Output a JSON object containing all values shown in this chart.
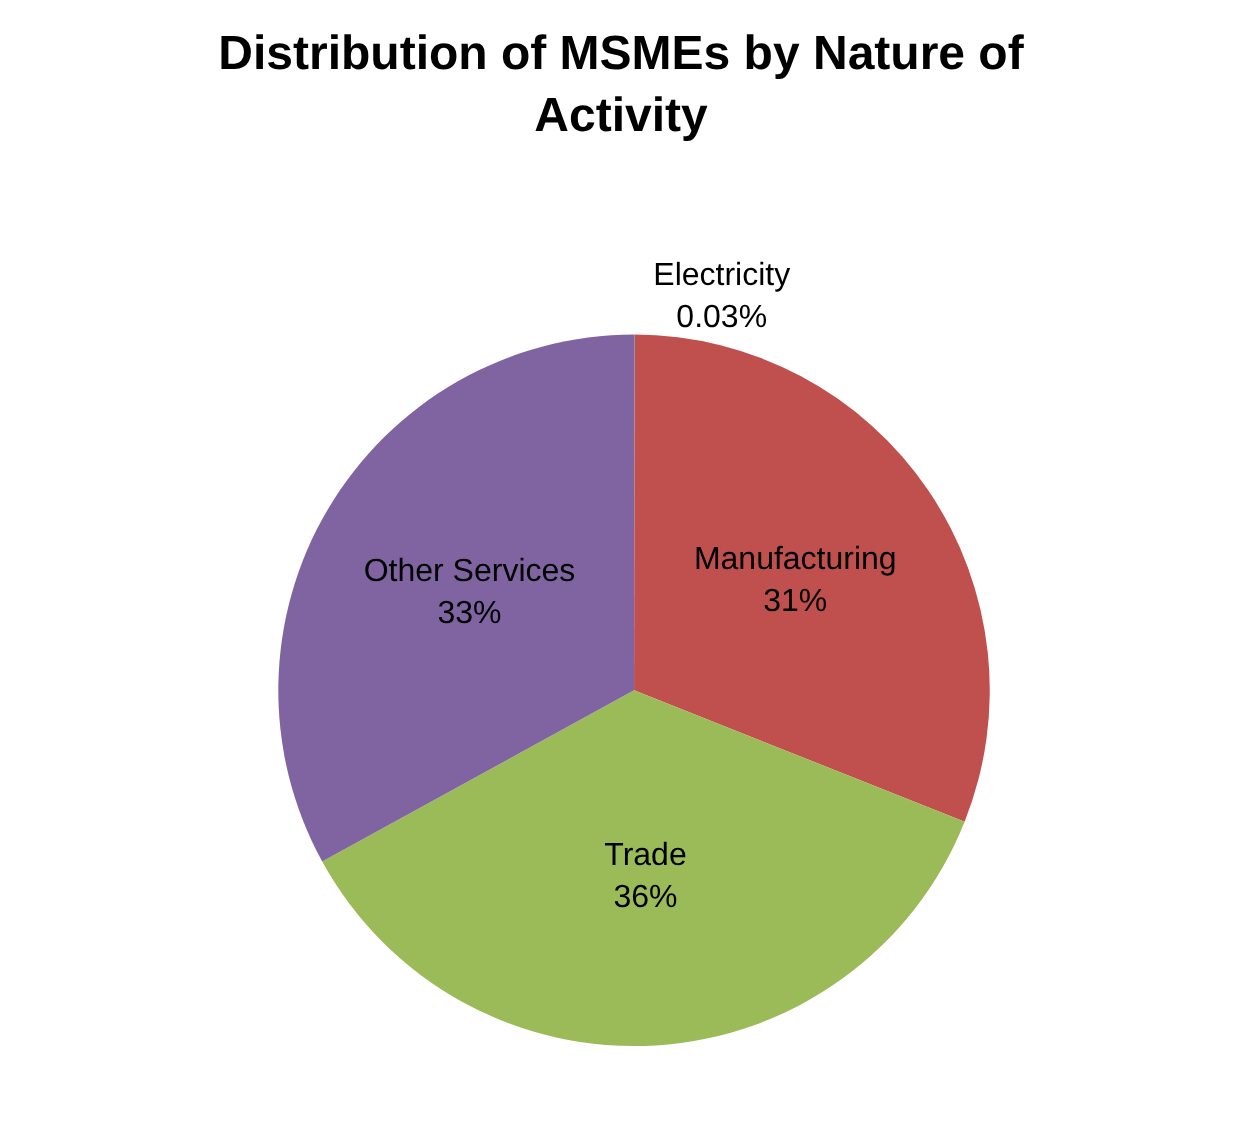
{
  "chart_data": {
    "type": "pie",
    "title": "Distribution of MSMEs by Nature of Activity",
    "categories": [
      "Electricity",
      "Manufacturing",
      "Trade",
      "Other Services"
    ],
    "values": [
      0.03,
      31,
      36,
      33
    ],
    "colors": [
      "#4f81bd",
      "#c0504d",
      "#9bbb59",
      "#8064a2"
    ],
    "value_labels": [
      "0.03%",
      "31%",
      "36%",
      "33%"
    ],
    "legend": false
  }
}
